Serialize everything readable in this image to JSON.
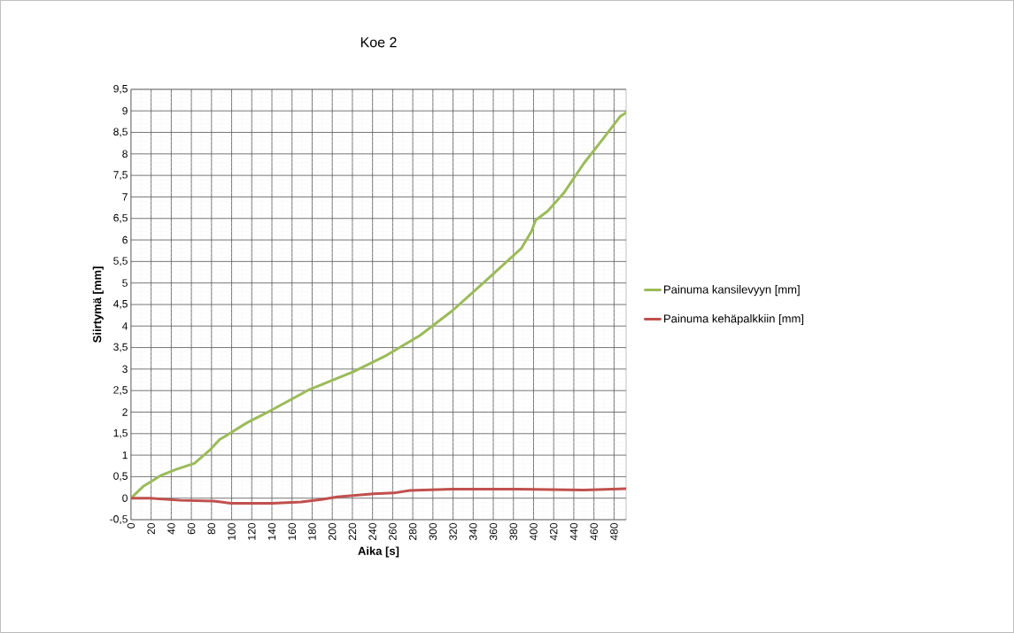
{
  "chart_data": {
    "type": "line",
    "title": "Koe 2",
    "xlabel": "Aika [s]",
    "ylabel": "Siirtymä [mm]",
    "xlim": [
      0,
      492
    ],
    "ylim": [
      -0.5,
      9.5
    ],
    "xticks": [
      0,
      20,
      40,
      60,
      80,
      100,
      120,
      140,
      160,
      180,
      200,
      220,
      240,
      260,
      280,
      300,
      320,
      340,
      360,
      380,
      400,
      420,
      440,
      460,
      480
    ],
    "yticks": [
      {
        "value": -0.5,
        "label": "-0,5"
      },
      0,
      {
        "value": 0.5,
        "label": "0,5"
      },
      1,
      {
        "value": 1.5,
        "label": "1,5"
      },
      2,
      {
        "value": 2.5,
        "label": "2,5"
      },
      3,
      {
        "value": 3.5,
        "label": "3,5"
      },
      4,
      {
        "value": 4.5,
        "label": "4,5"
      },
      5,
      {
        "value": 5.5,
        "label": "5,5"
      },
      6,
      {
        "value": 6.5,
        "label": "6,5"
      },
      7,
      {
        "value": 7.5,
        "label": "7,5"
      },
      8,
      {
        "value": 8.5,
        "label": "8,5"
      },
      9,
      {
        "value": 9.5,
        "label": "9,5"
      }
    ],
    "grid": true,
    "legend": "right",
    "marker": "none",
    "line_style": "solid",
    "series": [
      {
        "name": "Painuma kansilevyyn [mm]",
        "color": "#9bbb59",
        "x": [
          0,
          12,
          29,
          45,
          63,
          78,
          88,
          100,
          115,
          140,
          176,
          221,
          254,
          287,
          319,
          352,
          388,
          398,
          402,
          414,
          430,
          450,
          469,
          486,
          492
        ],
        "values": [
          0,
          0.27,
          0.52,
          0.67,
          0.81,
          1.11,
          1.36,
          1.53,
          1.75,
          2.05,
          2.51,
          2.94,
          3.32,
          3.78,
          4.35,
          5.04,
          5.81,
          6.2,
          6.46,
          6.67,
          7.09,
          7.78,
          8.35,
          8.87,
          8.96
        ]
      },
      {
        "name": "Painuma kehäpalkkiin [mm]",
        "color": "#c0504d",
        "x": [
          0,
          19,
          49,
          82,
          100,
          140,
          169,
          189,
          205,
          241,
          261,
          277,
          319,
          385,
          450,
          492
        ],
        "values": [
          0,
          0,
          -0.05,
          -0.07,
          -0.12,
          -0.12,
          -0.09,
          -0.03,
          0.03,
          0.1,
          0.12,
          0.18,
          0.21,
          0.21,
          0.19,
          0.22
        ]
      }
    ]
  }
}
